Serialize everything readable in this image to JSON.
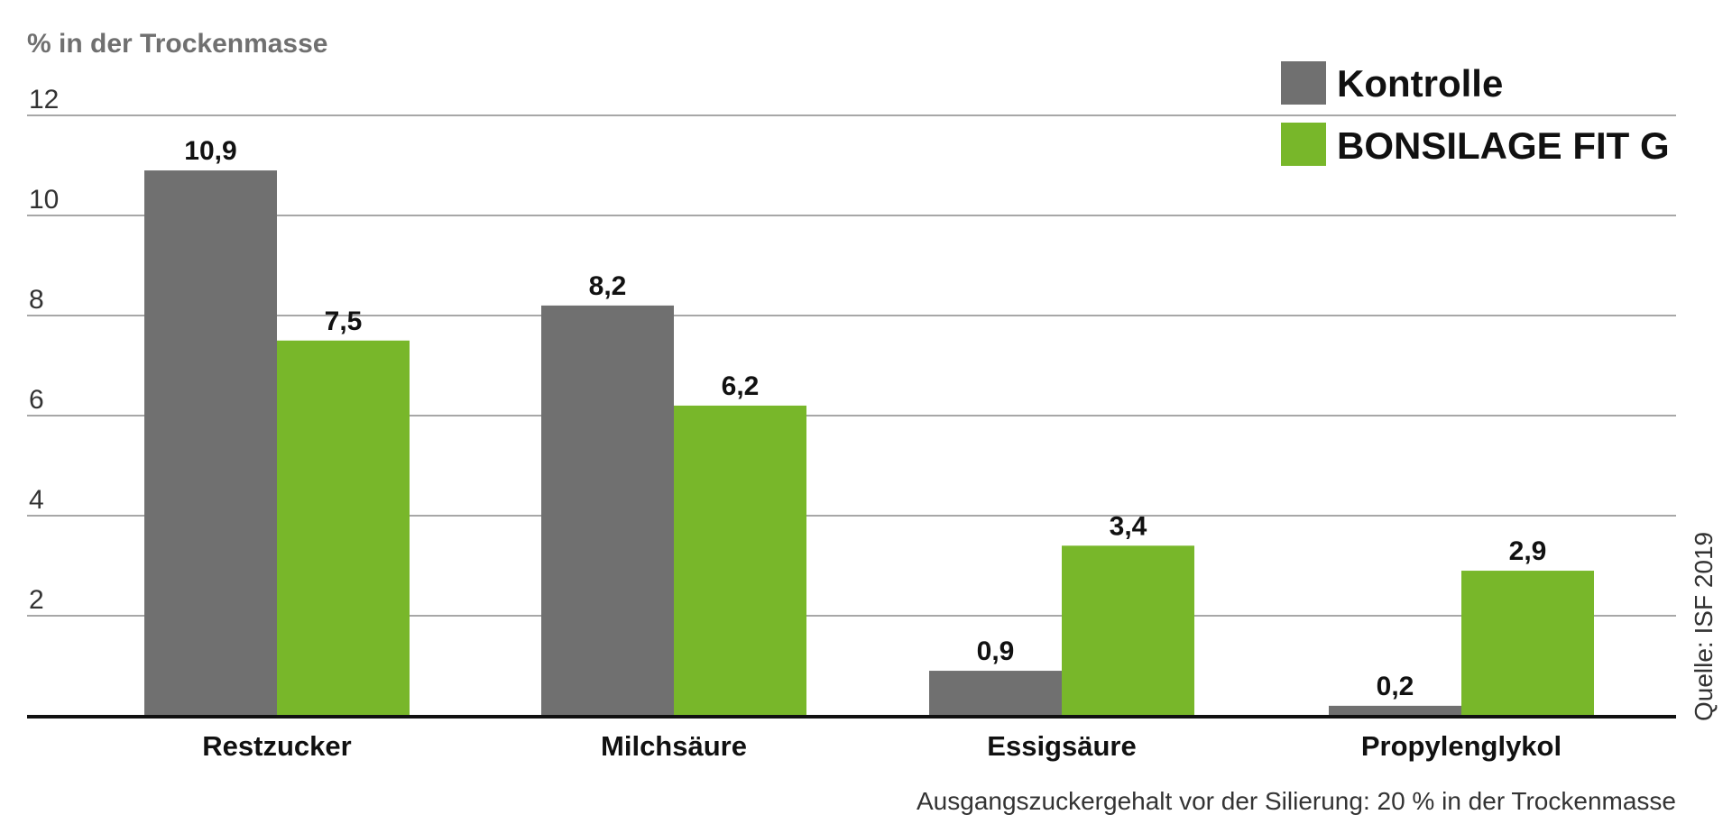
{
  "chart_data": {
    "type": "bar",
    "ylabel": "% in der Trockenmasse",
    "ylim": [
      0,
      12
    ],
    "yticks": [
      2,
      4,
      6,
      8,
      10,
      12
    ],
    "grid": true,
    "legend_position": "top-right",
    "categories": [
      "Restzucker",
      "Milchsäure",
      "Essigsäure",
      "Propylenglykol"
    ],
    "series": [
      {
        "name": "Kontrolle",
        "color": "#707070",
        "values": [
          10.9,
          8.2,
          0.9,
          0.2
        ],
        "labels": [
          "10,9",
          "8,2",
          "0,9",
          "0,2"
        ]
      },
      {
        "name": "BONSILAGE FIT G",
        "color": "#78b72a",
        "values": [
          7.5,
          6.2,
          3.4,
          2.9
        ],
        "labels": [
          "7,5",
          "6,2",
          "3,4",
          "2,9"
        ]
      }
    ],
    "note": "Ausgangszuckergehalt vor der Silierung: 20 % in der Trockenmasse",
    "source": "Quelle: ISF 2019"
  }
}
